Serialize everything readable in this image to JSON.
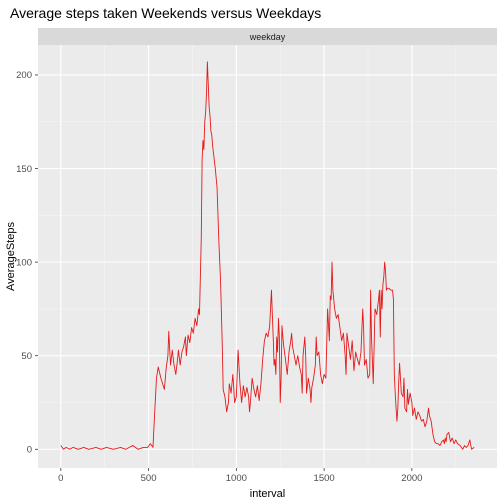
{
  "chart_data": {
    "type": "line",
    "title": "Average steps taken Weekends versus Weekdays",
    "facet_label": "weekday",
    "xlabel": "interval",
    "ylabel": "AverageSteps",
    "xlim": [
      -130,
      2485
    ],
    "ylim": [
      -10,
      216
    ],
    "x_ticks": [
      0,
      500,
      1000,
      1500,
      2000
    ],
    "y_ticks": [
      0,
      50,
      100,
      150,
      200
    ],
    "grid": true,
    "series": [
      {
        "color": "#e41a1c",
        "points": [
          [
            0,
            2
          ],
          [
            15,
            0
          ],
          [
            30,
            1
          ],
          [
            50,
            0
          ],
          [
            70,
            1
          ],
          [
            100,
            0
          ],
          [
            130,
            1
          ],
          [
            160,
            0
          ],
          [
            200,
            1
          ],
          [
            230,
            0
          ],
          [
            260,
            1
          ],
          [
            300,
            0
          ],
          [
            340,
            1
          ],
          [
            370,
            0
          ],
          [
            410,
            2
          ],
          [
            440,
            0
          ],
          [
            470,
            1
          ],
          [
            495,
            1
          ],
          [
            510,
            3
          ],
          [
            525,
            1
          ],
          [
            535,
            20
          ],
          [
            545,
            38
          ],
          [
            555,
            44
          ],
          [
            570,
            38
          ],
          [
            590,
            32
          ],
          [
            600,
            43
          ],
          [
            610,
            50
          ],
          [
            615,
            63
          ],
          [
            625,
            45
          ],
          [
            635,
            53
          ],
          [
            645,
            45
          ],
          [
            655,
            40
          ],
          [
            665,
            48
          ],
          [
            670,
            53
          ],
          [
            680,
            45
          ],
          [
            690,
            52
          ],
          [
            700,
            55
          ],
          [
            710,
            60
          ],
          [
            715,
            50
          ],
          [
            725,
            61
          ],
          [
            735,
            57
          ],
          [
            745,
            65
          ],
          [
            755,
            62
          ],
          [
            765,
            70
          ],
          [
            775,
            66
          ],
          [
            785,
            75
          ],
          [
            790,
            72
          ],
          [
            800,
            112
          ],
          [
            805,
            155
          ],
          [
            810,
            165
          ],
          [
            815,
            160
          ],
          [
            820,
            175
          ],
          [
            825,
            180
          ],
          [
            830,
            190
          ],
          [
            835,
            207
          ],
          [
            840,
            195
          ],
          [
            845,
            183
          ],
          [
            850,
            178
          ],
          [
            855,
            170
          ],
          [
            860,
            168
          ],
          [
            865,
            162
          ],
          [
            870,
            158
          ],
          [
            880,
            150
          ],
          [
            890,
            140
          ],
          [
            900,
            112
          ],
          [
            910,
            90
          ],
          [
            920,
            55
          ],
          [
            925,
            32
          ],
          [
            935,
            28
          ],
          [
            945,
            20
          ],
          [
            955,
            25
          ],
          [
            960,
            35
          ],
          [
            970,
            30
          ],
          [
            980,
            40
          ],
          [
            985,
            33
          ],
          [
            990,
            25
          ],
          [
            1000,
            28
          ],
          [
            1010,
            53
          ],
          [
            1020,
            36
          ],
          [
            1030,
            25
          ],
          [
            1040,
            34
          ],
          [
            1050,
            28
          ],
          [
            1060,
            33
          ],
          [
            1070,
            28
          ],
          [
            1075,
            20
          ],
          [
            1080,
            25
          ],
          [
            1090,
            38
          ],
          [
            1100,
            32
          ],
          [
            1110,
            28
          ],
          [
            1120,
            34
          ],
          [
            1130,
            26
          ],
          [
            1140,
            35
          ],
          [
            1150,
            48
          ],
          [
            1160,
            58
          ],
          [
            1170,
            62
          ],
          [
            1180,
            60
          ],
          [
            1190,
            66
          ],
          [
            1200,
            85
          ],
          [
            1205,
            72
          ],
          [
            1210,
            60
          ],
          [
            1215,
            45
          ],
          [
            1220,
            48
          ],
          [
            1225,
            40
          ],
          [
            1230,
            60
          ],
          [
            1235,
            52
          ],
          [
            1240,
            70
          ],
          [
            1245,
            60
          ],
          [
            1250,
            25
          ],
          [
            1255,
            38
          ],
          [
            1260,
            66
          ],
          [
            1265,
            60
          ],
          [
            1270,
            55
          ],
          [
            1280,
            48
          ],
          [
            1290,
            40
          ],
          [
            1300,
            52
          ],
          [
            1310,
            58
          ],
          [
            1315,
            62
          ],
          [
            1320,
            55
          ],
          [
            1330,
            50
          ],
          [
            1340,
            45
          ],
          [
            1350,
            50
          ],
          [
            1360,
            44
          ],
          [
            1370,
            40
          ],
          [
            1375,
            30
          ],
          [
            1380,
            50
          ],
          [
            1390,
            60
          ],
          [
            1395,
            50
          ],
          [
            1400,
            30
          ],
          [
            1410,
            38
          ],
          [
            1420,
            32
          ],
          [
            1425,
            25
          ],
          [
            1430,
            33
          ],
          [
            1440,
            38
          ],
          [
            1450,
            45
          ],
          [
            1455,
            60
          ],
          [
            1460,
            50
          ],
          [
            1470,
            52
          ],
          [
            1480,
            40
          ],
          [
            1490,
            35
          ],
          [
            1500,
            40
          ],
          [
            1510,
            38
          ],
          [
            1520,
            75
          ],
          [
            1530,
            58
          ],
          [
            1535,
            82
          ],
          [
            1540,
            80
          ],
          [
            1545,
            100
          ],
          [
            1550,
            85
          ],
          [
            1555,
            80
          ],
          [
            1560,
            75
          ],
          [
            1570,
            70
          ],
          [
            1580,
            72
          ],
          [
            1590,
            65
          ],
          [
            1600,
            58
          ],
          [
            1610,
            62
          ],
          [
            1620,
            50
          ],
          [
            1625,
            40
          ],
          [
            1630,
            62
          ],
          [
            1640,
            55
          ],
          [
            1650,
            48
          ],
          [
            1660,
            58
          ],
          [
            1670,
            42
          ],
          [
            1680,
            52
          ],
          [
            1690,
            48
          ],
          [
            1700,
            45
          ],
          [
            1710,
            52
          ],
          [
            1720,
            75
          ],
          [
            1725,
            65
          ],
          [
            1730,
            45
          ],
          [
            1740,
            48
          ],
          [
            1750,
            38
          ],
          [
            1760,
            40
          ],
          [
            1765,
            85
          ],
          [
            1770,
            60
          ],
          [
            1780,
            35
          ],
          [
            1790,
            75
          ],
          [
            1800,
            72
          ],
          [
            1810,
            80
          ],
          [
            1815,
            85
          ],
          [
            1820,
            60
          ],
          [
            1825,
            85
          ],
          [
            1830,
            75
          ],
          [
            1835,
            88
          ],
          [
            1840,
            92
          ],
          [
            1845,
            100
          ],
          [
            1850,
            95
          ],
          [
            1855,
            85
          ],
          [
            1860,
            86
          ],
          [
            1870,
            86
          ],
          [
            1880,
            85
          ],
          [
            1890,
            85
          ],
          [
            1895,
            80
          ],
          [
            1900,
            40
          ],
          [
            1905,
            30
          ],
          [
            1910,
            22
          ],
          [
            1915,
            15
          ],
          [
            1920,
            22
          ],
          [
            1925,
            36
          ],
          [
            1930,
            46
          ],
          [
            1935,
            38
          ],
          [
            1940,
            30
          ],
          [
            1950,
            28
          ],
          [
            1955,
            38
          ],
          [
            1960,
            22
          ],
          [
            1970,
            20
          ],
          [
            1975,
            32
          ],
          [
            1980,
            24
          ],
          [
            1990,
            30
          ],
          [
            2000,
            25
          ],
          [
            2005,
            18
          ],
          [
            2015,
            22
          ],
          [
            2025,
            16
          ],
          [
            2035,
            20
          ],
          [
            2045,
            18
          ],
          [
            2055,
            15
          ],
          [
            2065,
            16
          ],
          [
            2075,
            12
          ],
          [
            2085,
            15
          ],
          [
            2095,
            22
          ],
          [
            2100,
            18
          ],
          [
            2110,
            15
          ],
          [
            2120,
            8
          ],
          [
            2130,
            4
          ],
          [
            2140,
            3
          ],
          [
            2150,
            3
          ],
          [
            2160,
            2
          ],
          [
            2170,
            4
          ],
          [
            2180,
            5
          ],
          [
            2185,
            3
          ],
          [
            2190,
            6
          ],
          [
            2195,
            4
          ],
          [
            2200,
            8
          ],
          [
            2210,
            9
          ],
          [
            2220,
            4
          ],
          [
            2230,
            6
          ],
          [
            2240,
            3
          ],
          [
            2250,
            5
          ],
          [
            2260,
            3
          ],
          [
            2275,
            2
          ],
          [
            2290,
            0
          ],
          [
            2300,
            2
          ],
          [
            2310,
            1
          ],
          [
            2320,
            2
          ],
          [
            2330,
            5
          ],
          [
            2340,
            0
          ],
          [
            2355,
            1
          ]
        ]
      }
    ]
  }
}
